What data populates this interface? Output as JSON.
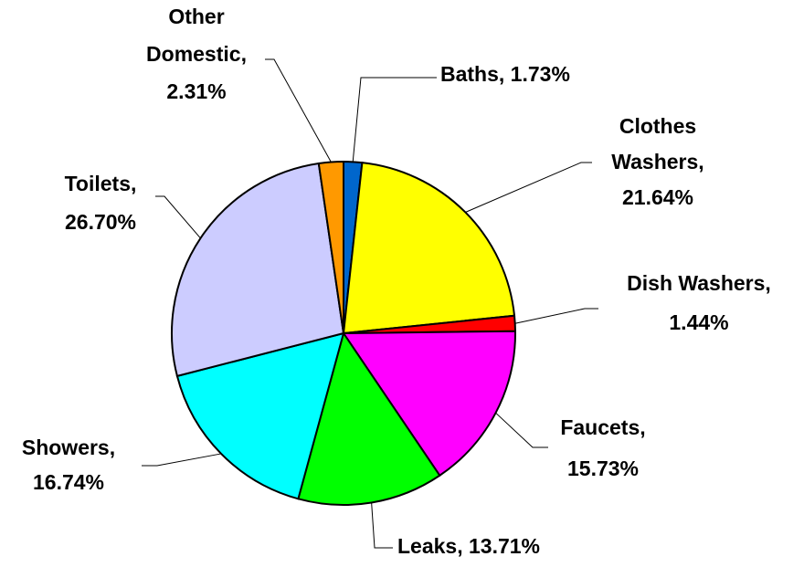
{
  "chart_data": {
    "type": "pie",
    "values": [
      1.73,
      21.64,
      1.44,
      15.73,
      13.71,
      16.74,
      26.7,
      2.31
    ],
    "value_labels": [
      [
        "Baths, 1.73%"
      ],
      [
        "Clothes",
        "Washers,",
        "21.64%"
      ],
      [
        "Dish Washers,",
        "1.44%"
      ],
      [
        "Faucets,",
        "15.73%"
      ],
      [
        "Leaks, 13.71%"
      ],
      [
        "Showers,",
        "16.74%"
      ],
      [
        "Toilets,",
        "26.70%"
      ],
      [
        "Other",
        "Domestic,",
        "2.31%"
      ]
    ],
    "colors": [
      "#0066cc",
      "#ffff00",
      "#ff0000",
      "#ff00ff",
      "#00ff00",
      "#00ffff",
      "#ccccff",
      "#ff9900"
    ]
  }
}
